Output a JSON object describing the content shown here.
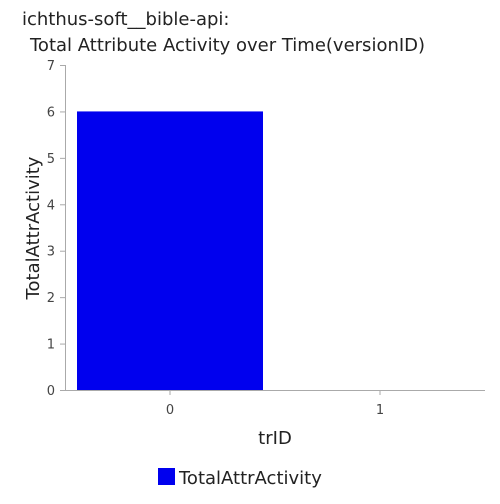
{
  "chart_data": {
    "type": "bar",
    "title_line1": "ichthus-soft__bible-api:",
    "title_line2": "Total Attribute Activity over Time(versionID)",
    "xlabel": "trID",
    "ylabel": "TotalAttrActivity",
    "categories": [
      "0",
      "1"
    ],
    "series": [
      {
        "name": "TotalAttrActivity",
        "values": [
          6,
          0
        ],
        "color": "#0000ee"
      }
    ],
    "ylim": [
      0,
      7
    ],
    "y_ticks": [
      "0",
      "1",
      "2",
      "3",
      "4",
      "5",
      "6",
      "7"
    ],
    "grid": false,
    "legend_position": "bottom-center"
  }
}
